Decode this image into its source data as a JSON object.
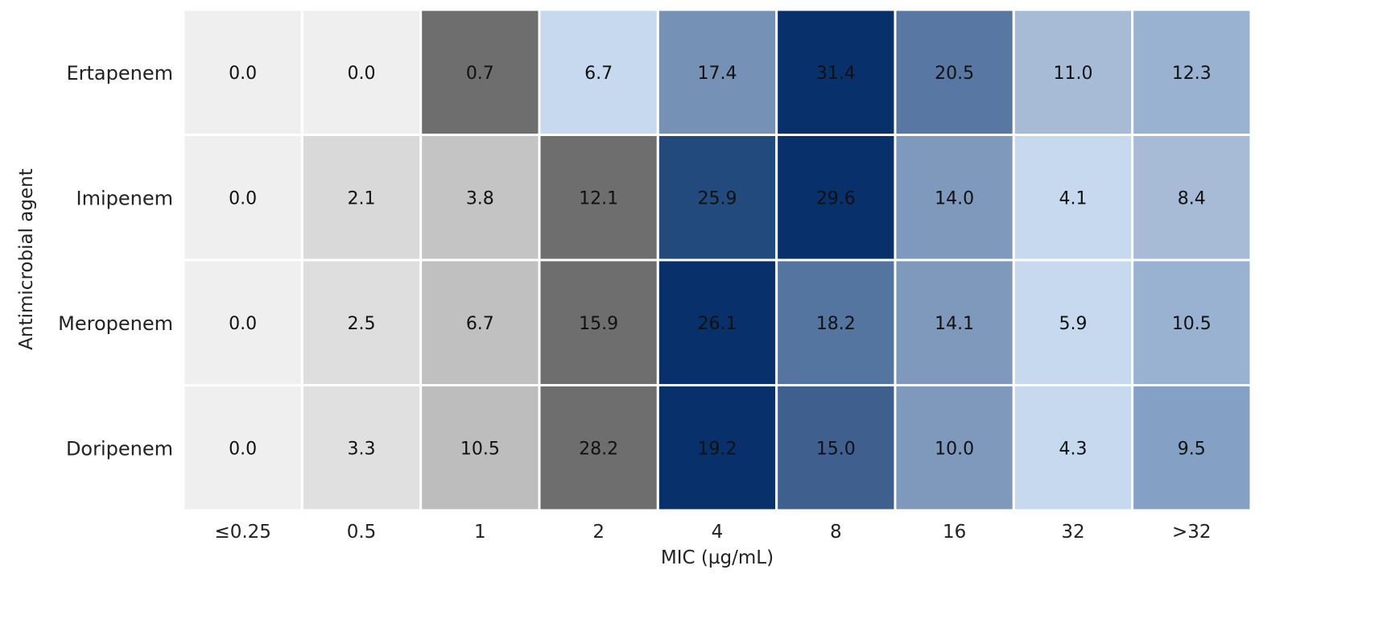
{
  "chart_data": {
    "type": "heatmap",
    "title": "",
    "xlabel": "MIC (µg/mL)",
    "ylabel": "Antimicrobial agent",
    "categories": [
      "≤0.25",
      "0.5",
      "1",
      "2",
      "4",
      "8",
      "16",
      "32",
      ">32"
    ],
    "rows": [
      "Ertapenem",
      "Imipenem",
      "Meropenem",
      "Doripenem"
    ],
    "values": [
      [
        0.0,
        0.0,
        0.7,
        6.7,
        17.4,
        31.4,
        20.5,
        11.0,
        12.3
      ],
      [
        0.0,
        2.1,
        3.8,
        12.1,
        25.9,
        29.6,
        14.0,
        4.1,
        8.4
      ],
      [
        0.0,
        2.5,
        6.7,
        15.9,
        26.1,
        18.2,
        14.1,
        5.9,
        10.5
      ],
      [
        0.0,
        3.3,
        10.5,
        28.2,
        19.2,
        15.0,
        10.0,
        4.3,
        9.5
      ]
    ],
    "labels": [
      [
        "0.0",
        "0.0",
        "0.7",
        "6.7",
        "17.4",
        "31.4",
        "20.5",
        "11.0",
        "12.3"
      ],
      [
        "0.0",
        "2.1",
        "3.8",
        "12.1",
        "25.9",
        "29.6",
        "14.0",
        "4.1",
        "8.4"
      ],
      [
        "0.0",
        "2.5",
        "6.7",
        "15.9",
        "26.1",
        "18.2",
        "14.1",
        "5.9",
        "10.5"
      ],
      [
        "0.0",
        "3.3",
        "10.5",
        "28.2",
        "19.2",
        "15.0",
        "10.0",
        "4.3",
        "9.5"
      ]
    ],
    "colors": [
      [
        "#efefef",
        "#efefef",
        "#6e6e6e",
        "#c6d9ee",
        "#7591b5",
        "#08306b",
        "#5878a3",
        "#a7bbd6",
        "#9ab2d1"
      ],
      [
        "#efefef",
        "#d9d9d9",
        "#c4c4c4",
        "#6e6e6e",
        "#224a7c",
        "#08306b",
        "#7f99bc",
        "#c6d9ee",
        "#a7bbd6"
      ],
      [
        "#efefef",
        "#dedede",
        "#c0c0c0",
        "#6e6e6e",
        "#08306b",
        "#5475a0",
        "#7f99bc",
        "#c6d9ee",
        "#9ab2d1"
      ],
      [
        "#efefef",
        "#e0e0e0",
        "#bdbdbd",
        "#6e6e6e",
        "#08306b",
        "#3f5f8f",
        "#7f99bc",
        "#c6d9ee",
        "#84a0c4"
      ]
    ],
    "grid": false,
    "legend": "none"
  }
}
